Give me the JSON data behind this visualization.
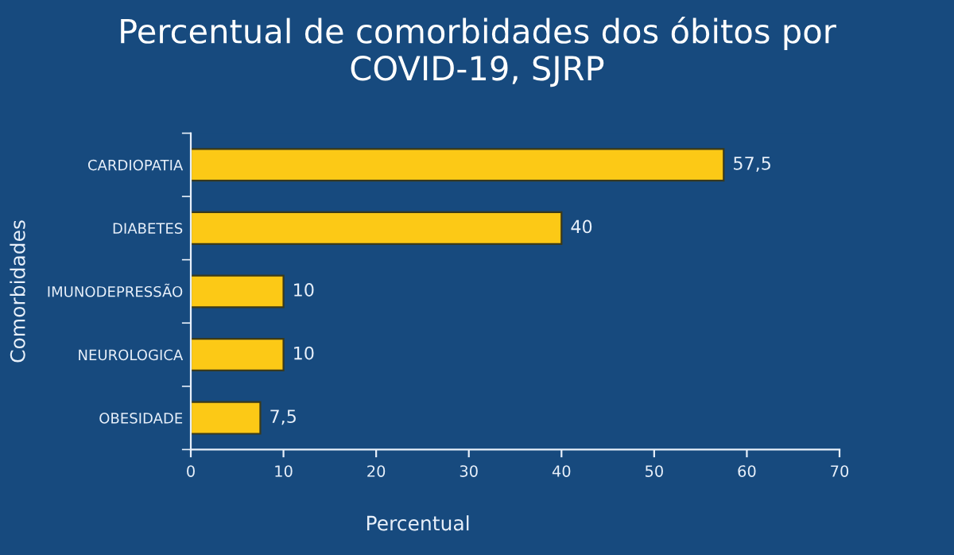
{
  "chart_data": {
    "type": "bar",
    "orientation": "horizontal",
    "title": "Percentual de comorbidades dos óbitos por\nCOVID-19, SJRP",
    "xlabel": "Percentual",
    "ylabel": "Comorbidades",
    "categories": [
      "CARDIOPATIA",
      "DIABETES",
      "IMUNODEPRESSÃO",
      "NEUROLOGICA",
      "OBESIDADE"
    ],
    "values": [
      57.5,
      40,
      10,
      10,
      7.5
    ],
    "value_labels": [
      "57,5",
      "40",
      "10",
      "10",
      "7,5"
    ],
    "color": "#fcc916",
    "xlim": [
      0,
      70
    ],
    "xticks": [
      0,
      10,
      20,
      30,
      40,
      50,
      60,
      70
    ],
    "grid": false,
    "legend": false
  }
}
